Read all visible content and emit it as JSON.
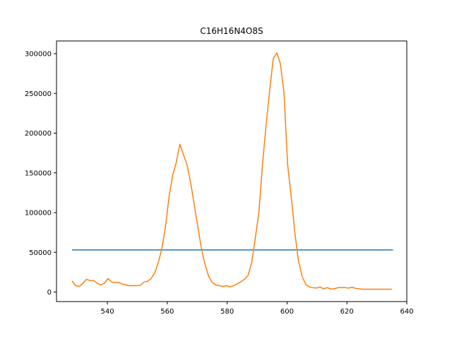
{
  "chart_data": {
    "type": "line",
    "title": "C16H16N4O8S",
    "xlabel": "",
    "ylabel": "",
    "xlim": [
      523,
      640
    ],
    "ylim": [
      -12000,
      316000
    ],
    "xticks": [
      540,
      560,
      580,
      600,
      620,
      640
    ],
    "yticks": [
      0,
      50000,
      100000,
      150000,
      200000,
      250000,
      300000
    ],
    "grid": false,
    "colors": {
      "baseline": "#1f77b4",
      "signal": "#ff7f0e"
    },
    "series": [
      {
        "x": [
          528.2,
          635.4
        ],
        "y": [
          53000,
          53000
        ]
      },
      {
        "x": [
          528.2,
          529.4,
          530.6,
          531.8,
          533.0,
          534.2,
          535.4,
          536.6,
          537.8,
          539.0,
          540.2,
          541.4,
          542.6,
          543.8,
          545.0,
          546.2,
          547.4,
          548.6,
          549.8,
          551.0,
          552.2,
          553.4,
          554.6,
          555.8,
          557.0,
          558.2,
          559.4,
          560.6,
          561.8,
          563.0,
          564.2,
          565.4,
          566.6,
          567.8,
          569.0,
          570.2,
          571.4,
          572.6,
          573.8,
          575.0,
          576.2,
          577.4,
          578.6,
          579.8,
          581.0,
          582.2,
          583.4,
          584.6,
          585.8,
          587.0,
          588.2,
          589.4,
          590.6,
          591.8,
          593.0,
          594.2,
          595.4,
          596.6,
          597.8,
          599.0,
          600.2,
          601.4,
          602.6,
          603.8,
          605.0,
          606.2,
          607.4,
          608.6,
          609.8,
          611.0,
          612.2,
          613.4,
          614.6,
          615.8,
          617.0,
          618.2,
          619.4,
          620.6,
          621.8,
          623.0,
          624.2,
          625.4,
          626.6,
          627.8,
          629.0,
          630.2,
          631.4,
          632.6,
          633.8,
          635.0
        ],
        "y": [
          14000,
          8000,
          7000,
          11000,
          16000,
          14500,
          14500,
          11000,
          9000,
          11000,
          17000,
          12500,
          12000,
          12000,
          10000,
          9000,
          8000,
          8000,
          8000,
          8500,
          12500,
          13500,
          17000,
          24000,
          37000,
          55000,
          82000,
          120000,
          147000,
          163000,
          186000,
          173000,
          160000,
          138000,
          110000,
          82000,
          55000,
          35000,
          20000,
          12000,
          9000,
          8000,
          7000,
          8000,
          6500,
          8000,
          10500,
          13000,
          16000,
          21000,
          37000,
          68000,
          100000,
          160000,
          210000,
          254000,
          294000,
          301000,
          287000,
          250000,
          160000,
          120000,
          75000,
          40000,
          20000,
          10000,
          6500,
          5500,
          5000,
          6500,
          4000,
          5500,
          4000,
          4000,
          5500,
          5500,
          5500,
          5000,
          6000,
          4500,
          4000,
          3500,
          3500,
          3500,
          3500,
          3500,
          3500,
          3500,
          3500,
          3500
        ]
      }
    ]
  }
}
